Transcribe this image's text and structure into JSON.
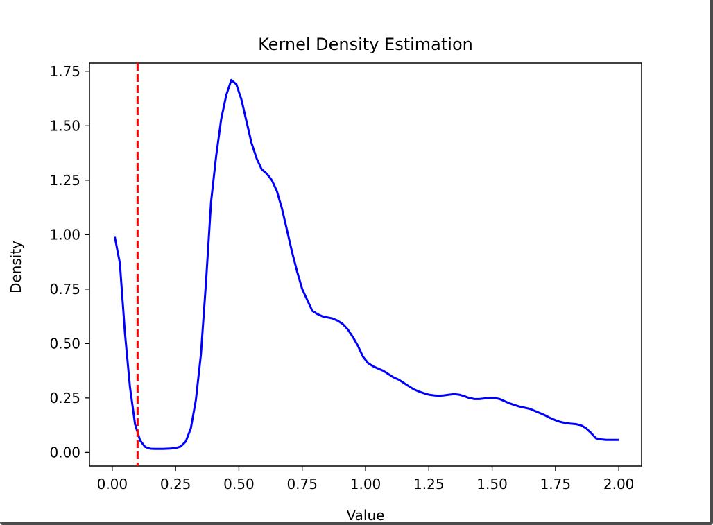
{
  "colors": {
    "background": "#ffffff",
    "kde_line": "#0000ff",
    "marker_line": "#ff0000",
    "axes": "#000000"
  },
  "chart_data": {
    "type": "line",
    "title": "Kernel Density Estimation",
    "xlabel": "Value",
    "ylabel": "Density",
    "xlim": [
      -0.09,
      2.09
    ],
    "ylim": [
      -0.0625,
      1.7875
    ],
    "grid": false,
    "x_ticks": [
      0.0,
      0.25,
      0.5,
      0.75,
      1.0,
      1.25,
      1.5,
      1.75,
      2.0
    ],
    "x_tick_labels": [
      "0.00",
      "0.25",
      "0.50",
      "0.75",
      "1.00",
      "1.25",
      "1.50",
      "1.75",
      "2.00"
    ],
    "y_ticks": [
      0.0,
      0.25,
      0.5,
      0.75,
      1.0,
      1.25,
      1.5,
      1.75
    ],
    "y_tick_labels": [
      "0.00",
      "0.25",
      "0.50",
      "0.75",
      "1.00",
      "1.25",
      "1.50",
      "1.75"
    ],
    "series": [
      {
        "style": "solid",
        "color": "#0000ff",
        "x": [
          0.01,
          0.03,
          0.05,
          0.07,
          0.09,
          0.11,
          0.13,
          0.15,
          0.17,
          0.2,
          0.23,
          0.25,
          0.27,
          0.29,
          0.31,
          0.33,
          0.35,
          0.37,
          0.39,
          0.41,
          0.43,
          0.45,
          0.47,
          0.49,
          0.51,
          0.53,
          0.55,
          0.57,
          0.59,
          0.61,
          0.63,
          0.65,
          0.67,
          0.69,
          0.71,
          0.73,
          0.75,
          0.77,
          0.79,
          0.81,
          0.83,
          0.85,
          0.87,
          0.89,
          0.91,
          0.93,
          0.95,
          0.97,
          0.99,
          1.01,
          1.03,
          1.05,
          1.07,
          1.09,
          1.11,
          1.13,
          1.15,
          1.17,
          1.19,
          1.21,
          1.23,
          1.25,
          1.27,
          1.29,
          1.31,
          1.33,
          1.35,
          1.37,
          1.39,
          1.41,
          1.43,
          1.45,
          1.47,
          1.49,
          1.51,
          1.53,
          1.55,
          1.57,
          1.59,
          1.61,
          1.63,
          1.65,
          1.67,
          1.69,
          1.71,
          1.73,
          1.75,
          1.77,
          1.79,
          1.81,
          1.83,
          1.85,
          1.87,
          1.89,
          1.91,
          1.93,
          1.95,
          1.97,
          1.99,
          2.0
        ],
        "y": [
          0.99,
          0.87,
          0.55,
          0.3,
          0.13,
          0.055,
          0.025,
          0.017,
          0.016,
          0.016,
          0.018,
          0.02,
          0.027,
          0.05,
          0.11,
          0.24,
          0.45,
          0.78,
          1.15,
          1.36,
          1.53,
          1.64,
          1.71,
          1.69,
          1.62,
          1.52,
          1.42,
          1.35,
          1.3,
          1.28,
          1.25,
          1.2,
          1.12,
          1.02,
          0.92,
          0.83,
          0.75,
          0.7,
          0.65,
          0.635,
          0.625,
          0.62,
          0.615,
          0.605,
          0.59,
          0.565,
          0.53,
          0.49,
          0.44,
          0.41,
          0.395,
          0.385,
          0.375,
          0.36,
          0.345,
          0.335,
          0.32,
          0.305,
          0.29,
          0.28,
          0.272,
          0.265,
          0.262,
          0.26,
          0.262,
          0.265,
          0.268,
          0.265,
          0.258,
          0.25,
          0.245,
          0.245,
          0.248,
          0.25,
          0.25,
          0.245,
          0.235,
          0.225,
          0.217,
          0.21,
          0.205,
          0.2,
          0.19,
          0.18,
          0.17,
          0.158,
          0.148,
          0.14,
          0.135,
          0.132,
          0.13,
          0.125,
          0.112,
          0.09,
          0.065,
          0.06,
          0.058,
          0.058,
          0.058,
          0.058
        ]
      },
      {
        "style": "dashed",
        "color": "#ff0000",
        "vertical_line_x": 0.1
      }
    ]
  }
}
